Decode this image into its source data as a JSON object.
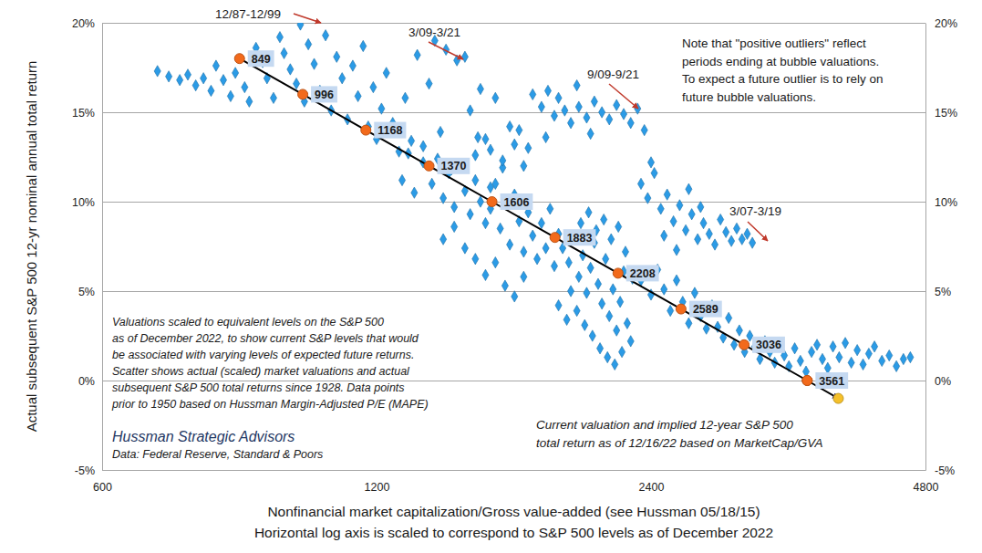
{
  "chart_data": {
    "type": "scatter",
    "y_label": "Actual subsequent S&P 500 12-yr nominal annual total return",
    "x_label": [
      "Nonfinancial market capitalization/Gross value-added (see Hussman 05/18/15)",
      "Horizontal log axis is scaled to correspond to S&P 500 levels as of December 2022"
    ],
    "log": "x",
    "grid": true,
    "xlim": [
      600,
      4800
    ],
    "xticks": [
      600,
      1200,
      2400,
      4800
    ],
    "ylim": [
      -5,
      20
    ],
    "yticks": [
      {
        "value": -5,
        "label": "-5%"
      },
      {
        "value": 0,
        "label": "0%"
      },
      {
        "value": 5,
        "label": "5%"
      },
      {
        "value": 10,
        "label": "10%"
      },
      {
        "value": 15,
        "label": "15%"
      },
      {
        "value": 20,
        "label": "20%"
      }
    ],
    "y2lim": [
      -5,
      20
    ],
    "y2ticks": [
      {
        "value": -5,
        "label": "-5%"
      },
      {
        "value": 0,
        "label": "0%"
      },
      {
        "value": 5,
        "label": "5%"
      },
      {
        "value": 10,
        "label": "10%"
      },
      {
        "value": 15,
        "label": "15%"
      },
      {
        "value": 20,
        "label": "20%"
      }
    ],
    "series": [
      {
        "type": "scatter",
        "marker": "diamond",
        "color": "#2b9be6",
        "x": [
          690,
          710,
          730,
          745,
          760,
          775,
          790,
          800,
          815,
          830,
          840,
          860,
          870,
          885,
          900,
          910,
          925,
          940,
          950,
          965,
          980,
          990,
          1000,
          1010,
          1025,
          1040,
          1055,
          1070,
          1085,
          1100,
          1115,
          1130,
          1145,
          1160,
          1175,
          1190,
          1200,
          1215,
          1230,
          1250,
          1270,
          1290,
          1310,
          1330,
          1350,
          1370,
          1390,
          1410,
          1430,
          1450,
          1470,
          1500,
          1520,
          1540,
          1560,
          1580,
          1600,
          1620,
          1650,
          1680,
          1780,
          1820,
          1850,
          1880,
          1900,
          1930,
          1960,
          2000,
          2040,
          2080,
          2120,
          2160,
          2200,
          2240,
          2280,
          2320,
          2360,
          1990,
          2060,
          1840,
          1760,
          1720,
          1280,
          1300,
          1320,
          1350,
          1380,
          1400,
          1420,
          1440,
          1460,
          1480,
          1500,
          1520,
          1540,
          1560,
          1580,
          1600,
          1620,
          1640,
          1660,
          1680,
          1700,
          1720,
          1740,
          1760,
          1780,
          1800,
          1820,
          1840,
          1860,
          1880,
          1900,
          1420,
          1460,
          1500,
          1540,
          1580,
          1620,
          1660,
          1700,
          1740,
          1550,
          1600,
          1650,
          1700,
          1740,
          1920,
          1950,
          1980,
          2000,
          2020,
          2040,
          2060,
          2080,
          2100,
          2120,
          2140,
          2160,
          2180,
          2200,
          2220,
          2240,
          2260,
          2280,
          1960,
          1990,
          2030,
          2070,
          2110,
          2150,
          2190,
          2230,
          1900,
          1940,
          2010,
          2050,
          2090,
          2130,
          2170,
          2210,
          2250,
          2290,
          2340,
          2380,
          2420,
          2460,
          2500,
          2540,
          2580,
          2620,
          2660,
          2700,
          2740,
          2780,
          2820,
          2860,
          2900,
          2940,
          2980,
          3020,
          3060,
          3100,
          2400,
          2480,
          2560,
          2640,
          2720,
          2340,
          2400,
          2440,
          2480,
          2520,
          2560,
          2600,
          2640,
          2680,
          2720,
          2760,
          2800,
          2840,
          2880,
          2920,
          2960,
          3000,
          3040,
          3080,
          3120,
          3160,
          3200,
          3240,
          3280,
          3320,
          3360,
          3400,
          3450,
          3500,
          3550,
          3600,
          3650,
          3700,
          3750,
          3800,
          3860,
          3920,
          3980,
          4040,
          4100,
          4160,
          4220,
          4300,
          4380,
          4460,
          4540,
          4620
        ],
        "values": [
          17.3,
          17.0,
          16.8,
          17.1,
          16.5,
          16.9,
          16.2,
          17.6,
          16.8,
          15.9,
          17.2,
          16.4,
          15.6,
          18.6,
          17.8,
          16.9,
          15.8,
          19.2,
          18.3,
          17.4,
          16.6,
          19.9,
          15.6,
          18.8,
          17.7,
          16.2,
          19.3,
          15.1,
          18.1,
          16.9,
          14.6,
          17.6,
          15.9,
          18.7,
          14.2,
          16.4,
          13.5,
          15.2,
          17.2,
          14.4,
          12.8,
          15.8,
          13.4,
          18.2,
          12.2,
          16.6,
          19.0,
          13.9,
          18.5,
          11.8,
          17.9,
          18.1,
          15.1,
          12.6,
          16.3,
          13.5,
          10.8,
          15.8,
          11.9,
          14.2,
          16.0,
          15.3,
          16.2,
          14.8,
          15.8,
          15.1,
          14.4,
          15.3,
          14.7,
          15.6,
          15.0,
          14.6,
          15.4,
          14.9,
          14.4,
          15.2,
          14.0,
          16.5,
          13.8,
          13.6,
          13.0,
          14.0,
          11.2,
          12.7,
          10.5,
          13.1,
          11.0,
          12.4,
          10.2,
          11.6,
          9.7,
          12.0,
          10.6,
          9.3,
          11.2,
          10.0,
          8.8,
          9.6,
          11.0,
          8.5,
          9.9,
          7.6,
          10.4,
          8.9,
          7.2,
          9.4,
          8.1,
          6.8,
          8.8,
          7.4,
          9.6,
          6.4,
          8.2,
          7.9,
          8.6,
          7.4,
          6.8,
          5.9,
          6.6,
          5.3,
          4.7,
          5.8,
          13.6,
          12.9,
          12.3,
          13.2,
          12.0,
          7.4,
          6.6,
          8.1,
          5.8,
          7.0,
          4.9,
          6.3,
          7.7,
          5.4,
          4.3,
          6.8,
          3.6,
          5.1,
          2.8,
          4.4,
          6.1,
          3.2,
          2.2,
          5.0,
          3.9,
          3.1,
          2.5,
          1.8,
          1.3,
          0.9,
          1.6,
          4.2,
          3.4,
          8.8,
          9.4,
          8.4,
          9.0,
          7.9,
          8.6,
          7.2,
          5.7,
          11.0,
          10.2,
          11.6,
          9.6,
          10.4,
          8.9,
          9.8,
          8.4,
          9.3,
          7.9,
          8.8,
          8.2,
          7.6,
          9.0,
          8.3,
          7.8,
          8.5,
          7.9,
          8.2,
          7.7,
          12.2,
          8.1,
          7.3,
          10.7,
          9.7,
          5.6,
          4.8,
          6.2,
          5.1,
          3.9,
          5.6,
          4.4,
          3.2,
          4.9,
          3.6,
          2.9,
          4.2,
          3.0,
          2.4,
          3.5,
          2.0,
          2.8,
          1.6,
          2.5,
          1.9,
          1.2,
          2.2,
          1.6,
          1.0,
          2.0,
          1.4,
          0.8,
          1.8,
          1.1,
          0.5,
          1.6,
          2.0,
          1.2,
          0.7,
          1.9,
          1.3,
          2.1,
          1.0,
          1.7,
          0.9,
          1.5,
          1.9,
          1.1,
          1.4,
          0.8,
          1.2,
          1.3
        ]
      },
      {
        "type": "line",
        "color": "#000000",
        "marker": "circle",
        "line_style": "solid",
        "data_labels": true,
        "colors": [
          "#f26a1b",
          "#f26a1b",
          "#f26a1b",
          "#f26a1b",
          "#f26a1b",
          "#f26a1b",
          "#f26a1b",
          "#f26a1b",
          "#f26a1b",
          "#f26a1b"
        ],
        "x": [
          849,
          996,
          1168,
          1370,
          1606,
          1883,
          2208,
          2589,
          3036,
          3561
        ],
        "values": [
          18,
          16,
          14,
          12,
          10,
          8,
          6,
          4,
          2,
          0
        ]
      },
      {
        "type": "line",
        "color": "#000000",
        "marker": "circle",
        "line_style": "arrow",
        "colors": [
          "#f26a1b",
          "#f5c02a"
        ],
        "x": [
          3561,
          3852
        ],
        "values": [
          0,
          -1.0
        ]
      }
    ],
    "annotations": [
      {
        "text": "12/87-12/99"
      },
      {
        "text": "3/09-3/21"
      },
      {
        "text": "9/09-9/21"
      },
      {
        "text": "3/07-3/19"
      },
      {
        "text": [
          "Note that \"positive outliers\" reflect",
          "periods ending at bubble valuations.",
          "To expect a future outlier is to rely on",
          "future bubble valuations."
        ]
      },
      {
        "text": [
          "Valuations scaled to equivalent levels on the S&P 500",
          "as of December 2022, to show current S&P levels that would",
          "be associated with varying levels of expected future returns.",
          "Scatter shows actual (scaled) market valuations and actual",
          "subsequent S&P 500 total returns since 1928. Data points",
          "prior to 1950 based on Hussman Margin-Adjusted P/E (MAPE)"
        ]
      },
      {
        "text": "Hussman Strategic Advisors"
      },
      {
        "text": "Data: Federal Reserve, Standard & Poors"
      },
      {
        "text": [
          "Current valuation and implied 12-year S&P 500",
          "total return as of 12/16/22 based on MarketCap/GVA"
        ]
      }
    ]
  }
}
